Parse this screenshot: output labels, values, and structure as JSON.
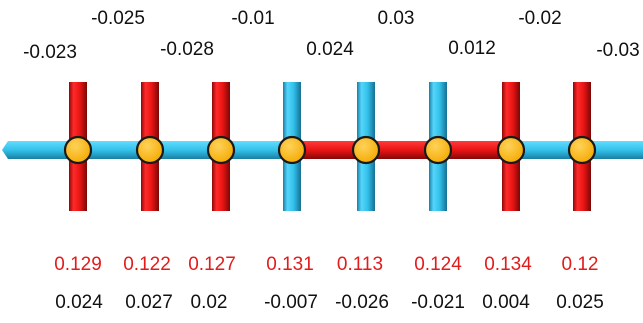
{
  "colors": {
    "red_bar": "#ee1c1c",
    "blue_bar": "#35c1ea",
    "node": "#fbb60e",
    "node_outline": "#1a1a1a",
    "red_text": "#e21b1b",
    "black_text": "#111111"
  },
  "top_labels_upper": [
    "-0.025",
    "-0.01",
    "0.03",
    "-0.02"
  ],
  "top_labels_lower": [
    "-0.023",
    "-0.028",
    "0.024",
    "0.012",
    "-0.03"
  ],
  "bar_colors": [
    "red",
    "red",
    "red",
    "blue",
    "blue",
    "blue",
    "red",
    "red"
  ],
  "segment_colors": [
    "blue",
    "blue",
    "blue",
    "blue",
    "red",
    "red",
    "red",
    "blue",
    "blue"
  ],
  "bottom_values_red": [
    "0.129",
    "0.122",
    "0.127",
    "0.131",
    "0.113",
    "0.124",
    "0.134",
    "0.12"
  ],
  "bottom_values_black": [
    "0.024",
    "0.027",
    "0.02",
    "-0.007",
    "-0.026",
    "-0.021",
    "0.004",
    "0.025"
  ]
}
